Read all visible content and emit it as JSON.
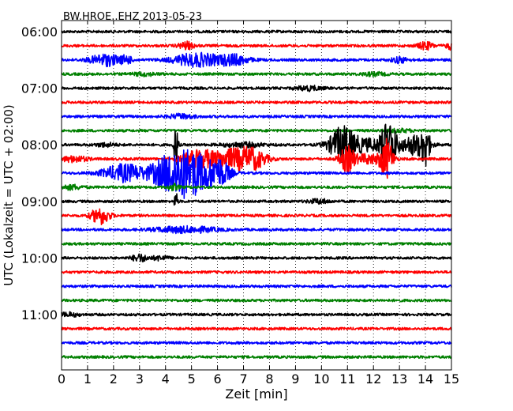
{
  "chart_data": {
    "type": "line",
    "title": "BW.HROE..EHZ 2013-05-23",
    "xlabel": "Zeit  [min]",
    "ylabel": "UTC (Lokalzeit = UTC + 02:00)",
    "xlim": [
      0,
      15
    ],
    "x_ticks": [
      "0",
      "1",
      "2",
      "3",
      "4",
      "5",
      "6",
      "7",
      "8",
      "9",
      "10",
      "11",
      "12",
      "13",
      "14",
      "15"
    ],
    "y_tick_labels": [
      {
        "label": "06:00",
        "row": 0
      },
      {
        "label": "07:00",
        "row": 4
      },
      {
        "label": "08:00",
        "row": 8
      },
      {
        "label": "09:00",
        "row": 12
      },
      {
        "label": "10:00",
        "row": 16
      },
      {
        "label": "11:00",
        "row": 20
      }
    ],
    "grid": "vertical dotted",
    "trace_colors": [
      "#000000",
      "#ff0000",
      "#0000ff",
      "#008000"
    ],
    "traces": [
      {
        "start_utc": "06:00",
        "color": "#000000",
        "events": []
      },
      {
        "start_utc": "06:15",
        "color": "#ff0000",
        "events": [
          {
            "t": 4.8,
            "amp": 0.25,
            "w": 0.3
          },
          {
            "t": 14.0,
            "amp": 0.25,
            "w": 0.3
          },
          {
            "t": 15.0,
            "amp": 0.25,
            "w": 0.2
          }
        ]
      },
      {
        "start_utc": "06:30",
        "color": "#0000ff",
        "events": [
          {
            "t": 1.7,
            "amp": 0.4,
            "w": 0.6
          },
          {
            "t": 2.5,
            "amp": 0.25,
            "w": 0.2
          },
          {
            "t": 5.2,
            "amp": 0.45,
            "w": 0.9
          },
          {
            "t": 6.6,
            "amp": 0.35,
            "w": 0.6
          },
          {
            "t": 13.0,
            "amp": 0.2,
            "w": 0.3
          }
        ]
      },
      {
        "start_utc": "06:45",
        "color": "#008000",
        "events": [
          {
            "t": 3.2,
            "amp": 0.1,
            "w": 0.5
          },
          {
            "t": 12.0,
            "amp": 0.1,
            "w": 0.5
          }
        ]
      },
      {
        "start_utc": "07:00",
        "color": "#000000",
        "events": [
          {
            "t": 9.5,
            "amp": 0.15,
            "w": 0.5
          }
        ]
      },
      {
        "start_utc": "07:15",
        "color": "#ff0000",
        "events": []
      },
      {
        "start_utc": "07:30",
        "color": "#0000ff",
        "events": [
          {
            "t": 4.6,
            "amp": 0.15,
            "w": 0.5
          }
        ]
      },
      {
        "start_utc": "07:45",
        "color": "#008000",
        "events": [
          {
            "t": 13.0,
            "amp": 0.1,
            "w": 0.5
          }
        ]
      },
      {
        "start_utc": "08:00",
        "color": "#000000",
        "events": [
          {
            "t": 1.7,
            "amp": 0.12,
            "w": 0.4
          },
          {
            "t": 4.4,
            "amp": 1.6,
            "w": 0.08
          },
          {
            "t": 7.0,
            "amp": 0.15,
            "w": 0.8
          },
          {
            "t": 10.8,
            "amp": 1.2,
            "w": 0.5
          },
          {
            "t": 11.8,
            "amp": 0.4,
            "w": 0.8
          },
          {
            "t": 12.6,
            "amp": 1.6,
            "w": 0.3
          },
          {
            "t": 13.6,
            "amp": 0.7,
            "w": 0.5
          },
          {
            "t": 14.0,
            "amp": 1.3,
            "w": 0.15
          }
        ]
      },
      {
        "start_utc": "08:15",
        "color": "#ff0000",
        "events": [
          {
            "t": 0.5,
            "amp": 0.2,
            "w": 0.5
          },
          {
            "t": 5.3,
            "amp": 0.6,
            "w": 0.7
          },
          {
            "t": 6.6,
            "amp": 0.65,
            "w": 0.7
          },
          {
            "t": 7.4,
            "amp": 0.6,
            "w": 0.5
          },
          {
            "t": 11.0,
            "amp": 0.9,
            "w": 0.3
          },
          {
            "t": 11.8,
            "amp": 0.35,
            "w": 0.4
          },
          {
            "t": 12.5,
            "amp": 1.4,
            "w": 0.25
          }
        ]
      },
      {
        "start_utc": "08:30",
        "color": "#0000ff",
        "events": [
          {
            "t": 2.4,
            "amp": 0.6,
            "w": 0.8
          },
          {
            "t": 4.3,
            "amp": 1.4,
            "w": 0.8
          },
          {
            "t": 5.2,
            "amp": 1.1,
            "w": 0.7
          },
          {
            "t": 6.1,
            "amp": 0.8,
            "w": 0.4
          }
        ]
      },
      {
        "start_utc": "08:45",
        "color": "#008000",
        "events": [
          {
            "t": 0.4,
            "amp": 0.15,
            "w": 0.4
          },
          {
            "t": 4.3,
            "amp": 0.2,
            "w": 0.2
          }
        ]
      },
      {
        "start_utc": "09:00",
        "color": "#000000",
        "events": [
          {
            "t": 4.4,
            "amp": 0.7,
            "w": 0.06
          },
          {
            "t": 9.9,
            "amp": 0.15,
            "w": 0.4
          }
        ]
      },
      {
        "start_utc": "09:15",
        "color": "#ff0000",
        "events": [
          {
            "t": 1.5,
            "amp": 0.6,
            "w": 0.35
          }
        ]
      },
      {
        "start_utc": "09:30",
        "color": "#0000ff",
        "events": [
          {
            "t": 4.2,
            "amp": 0.15,
            "w": 0.8
          },
          {
            "t": 5.3,
            "amp": 0.15,
            "w": 0.8
          }
        ]
      },
      {
        "start_utc": "09:45",
        "color": "#008000",
        "events": []
      },
      {
        "start_utc": "10:00",
        "color": "#000000",
        "events": [
          {
            "t": 3.0,
            "amp": 0.25,
            "w": 0.3
          },
          {
            "t": 3.8,
            "amp": 0.15,
            "w": 0.3
          }
        ]
      },
      {
        "start_utc": "10:15",
        "color": "#ff0000",
        "events": []
      },
      {
        "start_utc": "10:30",
        "color": "#0000ff",
        "events": []
      },
      {
        "start_utc": "10:45",
        "color": "#008000",
        "events": []
      },
      {
        "start_utc": "11:00",
        "color": "#000000",
        "events": [
          {
            "t": 0.3,
            "amp": 0.12,
            "w": 0.4
          }
        ]
      },
      {
        "start_utc": "11:15",
        "color": "#ff0000",
        "events": []
      },
      {
        "start_utc": "11:30",
        "color": "#0000ff",
        "events": []
      },
      {
        "start_utc": "11:45",
        "color": "#008000",
        "events": []
      }
    ]
  }
}
